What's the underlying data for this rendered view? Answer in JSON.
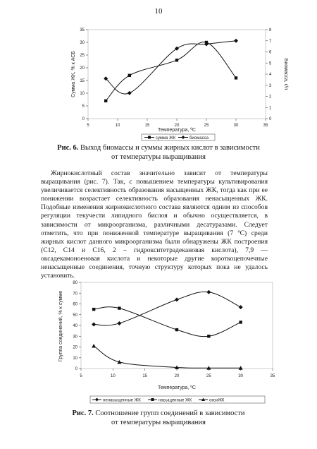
{
  "page": {
    "number": "10"
  },
  "figure6": {
    "caption_label": "Рис. 6.",
    "caption_line1": "Выход биомассы и суммы жирных кислот в зависимости",
    "caption_line2": "от температуры выращивания",
    "chart_data": {
      "type": "line",
      "title": "",
      "xlabel": "Температура, ºС",
      "ylabel_left": "Сумма ЖК, % к АСБ",
      "ylabel_right": "Биомасса, г/л",
      "x_ticks": [
        "5",
        "10",
        "15",
        "20",
        "25",
        "30",
        "35"
      ],
      "y_left_ticks": [
        "0",
        "5",
        "10",
        "15",
        "20",
        "25",
        "30",
        "35"
      ],
      "y_right_ticks": [
        "0",
        "1",
        "2",
        "3",
        "4",
        "5",
        "6",
        "7",
        "8"
      ],
      "xlim": [
        5,
        35
      ],
      "ylim_left": [
        0,
        35
      ],
      "ylim_right": [
        0,
        8
      ],
      "legend_position": "bottom",
      "series": [
        {
          "name": "сумма ЖК",
          "axis": "left",
          "marker": "square",
          "x": [
            8,
            12,
            20,
            25,
            30
          ],
          "y": [
            7,
            17,
            23,
            30,
            16
          ]
        },
        {
          "name": "биомасса",
          "axis": "right",
          "marker": "diamond",
          "x": [
            8,
            12,
            20,
            25,
            30
          ],
          "y": [
            3.6,
            2.3,
            6.3,
            6.7,
            7.0
          ]
        }
      ]
    }
  },
  "body": {
    "paragraph": "Жирнокислотный состав значительно зависит от температуры выращивания (рис. 7). Так, с повышением температуры культивирования увеличивается селективность образования насыщенных ЖК, тогда как при ее понижении возрастает селективность образования ненасыщенных ЖК. Подобные изменения жирнокислотного состава являются одним из способов регуляции текучести липидного бислоя и обычно осуществляется, в зависимости от микроорганизма, различными десатуразами. Следует отметить, что при пониженной температуре выращивания (7 ºС) среди жирных кислот данного микроорганизма были обнаружены ЖК построения (С12, С14 и С16, 2 – гидрокситетрадекановая кислота), 7,9 — оксадекамоноеновая кислота и некоторые другие короткоцепочечные ненасыщенные соединения, точную структуру которых пока не удалось установить."
  },
  "figure7": {
    "caption_label": "Рис. 7.",
    "caption_line1": "Соотношение групп соединений в зависимости",
    "caption_line2": "от температуры выращивания",
    "chart_data": {
      "type": "line",
      "title": "",
      "xlabel": "Температура, ºС",
      "ylabel": "Группа соединений, % к сумме",
      "x_ticks": [
        "5",
        "10",
        "15",
        "20",
        "25",
        "30",
        "35"
      ],
      "y_ticks": [
        "0",
        "10",
        "20",
        "30",
        "40",
        "50",
        "60",
        "70",
        "80"
      ],
      "xlim": [
        5,
        35
      ],
      "ylim": [
        0,
        80
      ],
      "legend_position": "bottom",
      "series": [
        {
          "name": "ненасыщенные ЖК",
          "marker": "diamond",
          "x": [
            7,
            11,
            20,
            25,
            30
          ],
          "y": [
            41,
            42,
            64,
            71,
            57
          ]
        },
        {
          "name": "насыщенные ЖК",
          "marker": "square",
          "x": [
            7,
            11,
            20,
            25,
            30
          ],
          "y": [
            55,
            56,
            36,
            30,
            43
          ]
        },
        {
          "name": "оксиЖК",
          "marker": "triangle",
          "x": [
            7,
            11,
            20,
            25,
            30
          ],
          "y": [
            21,
            6,
            1,
            0.5,
            0.5
          ]
        }
      ]
    }
  }
}
